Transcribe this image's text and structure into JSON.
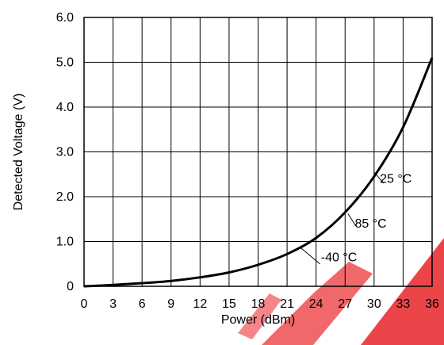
{
  "chart_data": {
    "type": "line",
    "title": "",
    "xlabel": "Power (dBm)",
    "ylabel": "Detected Voltage (V)",
    "xlim": [
      0,
      36
    ],
    "ylim": [
      0,
      6
    ],
    "grid": true,
    "x_ticks": [
      "0",
      "3",
      "6",
      "9",
      "12",
      "15",
      "18",
      "21",
      "24",
      "27",
      "30",
      "33",
      "36"
    ],
    "y_ticks": [
      "0",
      "1.0",
      "2.0",
      "3.0",
      "4.0",
      "5.0",
      "6.0"
    ],
    "series": [
      {
        "x": [
          0,
          3,
          6,
          9,
          12,
          15,
          18,
          21,
          24,
          27,
          30,
          33,
          36
        ],
        "y": [
          0.0,
          0.03,
          0.07,
          0.12,
          0.2,
          0.31,
          0.48,
          0.72,
          1.08,
          1.65,
          2.45,
          3.55,
          5.1
        ]
      }
    ],
    "annotations": [
      {
        "text": "25 °C",
        "x": 30.6,
        "y": 2.4
      },
      {
        "text": "85 °C",
        "x": 28.0,
        "y": 1.4
      },
      {
        "text": "-40 °C",
        "x": 24.5,
        "y": 0.65
      }
    ],
    "colors": {
      "line": "#000000",
      "grid": "#000000",
      "watermark": "#e8252a"
    }
  }
}
